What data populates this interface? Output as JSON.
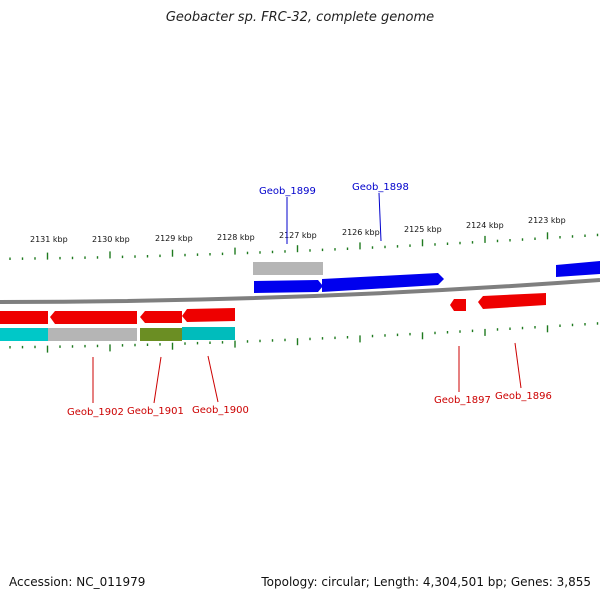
{
  "title": "Geobacter sp. FRC-32, complete genome",
  "footer": {
    "accession": "Accession: NC_011979",
    "summary": "Topology: circular; Length: 4,304,501 bp; Genes: 3,855"
  },
  "colors": {
    "backbone": "#808080",
    "tick": "#1e7a1e",
    "forward_label": "#0000cc",
    "reverse_label": "#cc0000"
  },
  "ruler": {
    "labels": [
      "2123 kbp",
      "2124 kbp",
      "2125 kbp",
      "2126 kbp",
      "2127 kbp",
      "2128 kbp",
      "2129 kbp",
      "2130 kbp",
      "2131 kbp"
    ]
  },
  "genes": [
    {
      "label": "Geob_1899",
      "strand": "forward",
      "color": "#0000ee"
    },
    {
      "label": "Geob_1898",
      "strand": "forward",
      "color": "#0000ee"
    },
    {
      "label": "Geob_1902",
      "strand": "reverse",
      "color": "#ee0000"
    },
    {
      "label": "Geob_1901",
      "strand": "reverse",
      "color": "#ee0000"
    },
    {
      "label": "Geob_1900",
      "strand": "reverse",
      "color": "#ee0000"
    },
    {
      "label": "Geob_1897",
      "strand": "reverse",
      "color": "#ee0000"
    },
    {
      "label": "Geob_1896",
      "strand": "reverse",
      "color": "#ee0000"
    }
  ]
}
